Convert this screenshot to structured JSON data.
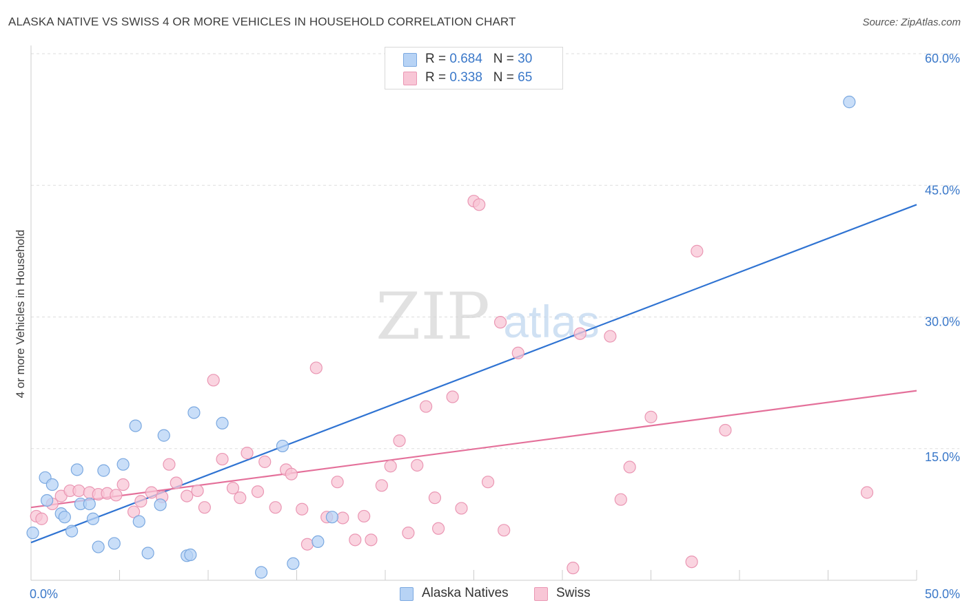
{
  "title": "ALASKA NATIVE VS SWISS 4 OR MORE VEHICLES IN HOUSEHOLD CORRELATION CHART",
  "source": "Source: ZipAtlas.com",
  "watermark": {
    "zip": "ZIP",
    "atlas": "atlas"
  },
  "legend_top": [
    {
      "r_label": "R = ",
      "r_value": "0.684",
      "n_label": "N = ",
      "n_value": "30"
    },
    {
      "r_label": "R = ",
      "r_value": "0.338",
      "n_label": "N = ",
      "n_value": "65"
    }
  ],
  "colors": {
    "blue_fill": "#b7d3f5",
    "blue_stroke": "#7aa8e0",
    "blue_line": "#2f73d2",
    "pink_fill": "#f8c6d6",
    "pink_stroke": "#ea96b3",
    "pink_line": "#e4709a",
    "tick_text": "#3a78c9",
    "grid": "#dddddd"
  },
  "chart_data": {
    "type": "scatter",
    "title": "ALASKA NATIVE VS SWISS 4 OR MORE VEHICLES IN HOUSEHOLD CORRELATION CHART",
    "xlabel": "",
    "ylabel": "4 or more Vehicles in Household",
    "xlim": [
      0,
      50
    ],
    "ylim": [
      0,
      63
    ],
    "x_tick_labels": [
      {
        "value": 0,
        "label": "0.0%"
      },
      {
        "value": 50,
        "label": "50.0%"
      }
    ],
    "y_tick_labels": [
      {
        "value": 15,
        "label": "15.0%"
      },
      {
        "value": 30,
        "label": "30.0%"
      },
      {
        "value": 45,
        "label": "45.0%"
      },
      {
        "value": 60,
        "label": "60.0%"
      }
    ],
    "series": [
      {
        "name": "Alaska Natives",
        "r": 0.684,
        "n": 30,
        "trend": {
          "x": [
            0,
            50
          ],
          "y": [
            4.3,
            42.8
          ]
        },
        "points": [
          [
            0.1,
            5.4
          ],
          [
            0.8,
            11.7
          ],
          [
            0.9,
            9.1
          ],
          [
            1.2,
            10.9
          ],
          [
            1.7,
            7.6
          ],
          [
            1.9,
            7.2
          ],
          [
            2.3,
            5.6
          ],
          [
            2.6,
            12.6
          ],
          [
            2.8,
            8.7
          ],
          [
            3.3,
            8.7
          ],
          [
            3.5,
            7.0
          ],
          [
            3.8,
            3.8
          ],
          [
            4.1,
            12.5
          ],
          [
            4.7,
            4.2
          ],
          [
            5.2,
            13.2
          ],
          [
            5.9,
            17.6
          ],
          [
            6.1,
            6.7
          ],
          [
            6.6,
            3.1
          ],
          [
            7.3,
            8.6
          ],
          [
            7.5,
            16.5
          ],
          [
            8.8,
            2.8
          ],
          [
            9.0,
            2.9
          ],
          [
            9.2,
            19.1
          ],
          [
            10.8,
            17.9
          ],
          [
            13.0,
            0.9
          ],
          [
            14.2,
            15.3
          ],
          [
            14.8,
            1.9
          ],
          [
            16.2,
            4.4
          ],
          [
            17.0,
            7.2
          ],
          [
            46.2,
            54.5
          ]
        ]
      },
      {
        "name": "Swiss",
        "r": 0.338,
        "n": 65,
        "trend": {
          "x": [
            0,
            50
          ],
          "y": [
            8.3,
            21.6
          ]
        },
        "points": [
          [
            0.3,
            7.3
          ],
          [
            1.2,
            8.7
          ],
          [
            1.7,
            9.6
          ],
          [
            2.2,
            10.2
          ],
          [
            2.7,
            10.2
          ],
          [
            3.3,
            10.0
          ],
          [
            3.8,
            9.8
          ],
          [
            4.3,
            9.9
          ],
          [
            4.8,
            9.7
          ],
          [
            5.2,
            10.9
          ],
          [
            5.8,
            7.8
          ],
          [
            6.2,
            9.0
          ],
          [
            6.8,
            10.0
          ],
          [
            7.4,
            9.5
          ],
          [
            7.8,
            13.2
          ],
          [
            8.2,
            11.1
          ],
          [
            8.8,
            9.6
          ],
          [
            9.4,
            10.2
          ],
          [
            9.8,
            8.3
          ],
          [
            10.3,
            22.8
          ],
          [
            10.8,
            13.8
          ],
          [
            11.4,
            10.5
          ],
          [
            11.8,
            9.4
          ],
          [
            12.2,
            14.5
          ],
          [
            12.8,
            10.1
          ],
          [
            13.2,
            13.5
          ],
          [
            13.8,
            8.3
          ],
          [
            14.4,
            12.6
          ],
          [
            14.7,
            12.1
          ],
          [
            15.3,
            8.1
          ],
          [
            15.6,
            4.1
          ],
          [
            16.1,
            24.2
          ],
          [
            16.7,
            7.2
          ],
          [
            17.3,
            11.2
          ],
          [
            17.6,
            7.1
          ],
          [
            18.3,
            4.6
          ],
          [
            18.8,
            7.3
          ],
          [
            19.2,
            4.6
          ],
          [
            19.8,
            10.8
          ],
          [
            20.3,
            13.0
          ],
          [
            20.8,
            15.9
          ],
          [
            21.3,
            5.4
          ],
          [
            21.8,
            13.1
          ],
          [
            22.3,
            19.8
          ],
          [
            22.8,
            9.4
          ],
          [
            23.0,
            5.9
          ],
          [
            23.8,
            20.9
          ],
          [
            24.3,
            8.2
          ],
          [
            25.0,
            43.2
          ],
          [
            25.3,
            42.8
          ],
          [
            25.8,
            11.2
          ],
          [
            26.5,
            29.4
          ],
          [
            26.7,
            5.7
          ],
          [
            27.5,
            25.9
          ],
          [
            30.6,
            1.4
          ],
          [
            31.0,
            28.1
          ],
          [
            32.7,
            27.8
          ],
          [
            33.3,
            9.2
          ],
          [
            33.8,
            12.9
          ],
          [
            35.0,
            18.6
          ],
          [
            37.3,
            2.1
          ],
          [
            37.6,
            37.5
          ],
          [
            39.2,
            17.1
          ],
          [
            47.2,
            10.0
          ],
          [
            0.6,
            7.0
          ]
        ]
      }
    ]
  }
}
